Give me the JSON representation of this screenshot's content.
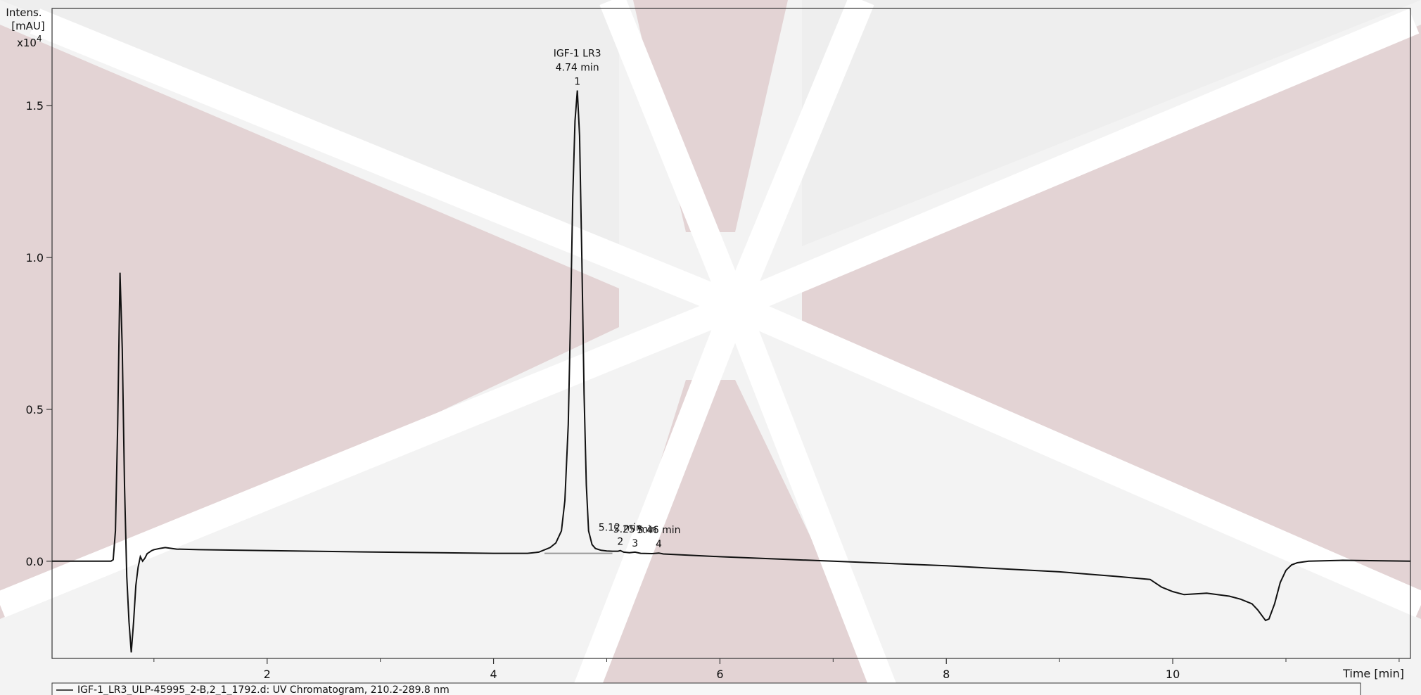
{
  "chart_data": {
    "type": "line",
    "title": "",
    "ylabel": [
      "Intens.",
      "[mAU]",
      "x10",
      "4"
    ],
    "xlabel": "Time [min]",
    "xlim": [
      0.1,
      12.1
    ],
    "ylim": [
      -0.32,
      1.82
    ],
    "xticks": [
      2,
      4,
      6,
      8,
      10
    ],
    "xtick_labels": [
      "2",
      "4",
      "6",
      "8",
      "10"
    ],
    "xminor": [
      1,
      3,
      5,
      7,
      9,
      11,
      12
    ],
    "yticks": [
      0.0,
      0.5,
      1.0,
      1.5
    ],
    "ytick_labels": [
      "0.0",
      "0.5",
      "1.0",
      "1.5"
    ],
    "grid": false,
    "legend": {
      "position": "bottom-left",
      "text": "IGF-1_LR3_ULP-45995_2-B,2_1_1792.d: UV Chromatogram, 210.2-289.8 nm"
    },
    "peaks": [
      {
        "number": "1",
        "time": 4.74,
        "name": "IGF-1 LR3",
        "time_label": "4.74 min",
        "height": 1.55
      },
      {
        "number": "2",
        "time": 5.12,
        "name": "",
        "time_label": "5.12 min",
        "height": 0.035
      },
      {
        "number": "3",
        "time": 5.25,
        "name": "",
        "time_label": "5.25 min",
        "height": 0.03
      },
      {
        "number": "4",
        "time": 5.46,
        "name": "",
        "time_label": "5.46 min",
        "height": 0.027
      }
    ],
    "series": [
      {
        "x": [
          0.1,
          0.62,
          0.64,
          0.66,
          0.68,
          0.7,
          0.72,
          0.74,
          0.76,
          0.78,
          0.8,
          0.82,
          0.84,
          0.86,
          0.88,
          0.9,
          0.92,
          0.94,
          0.96,
          0.98,
          1.0,
          1.05,
          1.1,
          1.2,
          1.4,
          2.0,
          3.0,
          4.0,
          4.3,
          4.4,
          4.5,
          4.55,
          4.6,
          4.63,
          4.66,
          4.68,
          4.7,
          4.72,
          4.74,
          4.76,
          4.78,
          4.8,
          4.82,
          4.84,
          4.87,
          4.9,
          4.95,
          5.0,
          5.05,
          5.1,
          5.12,
          5.15,
          5.2,
          5.25,
          5.3,
          5.4,
          5.46,
          5.5,
          6.0,
          7.0,
          8.0,
          9.0,
          9.5,
          9.8,
          9.9,
          10.0,
          10.1,
          10.3,
          10.5,
          10.6,
          10.7,
          10.75,
          10.8,
          10.82,
          10.85,
          10.9,
          10.95,
          11.0,
          11.05,
          11.1,
          11.2,
          11.5,
          12.1
        ],
        "y": [
          0.0,
          0.0,
          0.005,
          0.1,
          0.45,
          0.95,
          0.7,
          0.25,
          -0.05,
          -0.2,
          -0.3,
          -0.2,
          -0.08,
          -0.02,
          0.015,
          0.0,
          0.01,
          0.025,
          0.03,
          0.035,
          0.038,
          0.042,
          0.045,
          0.04,
          0.038,
          0.035,
          0.03,
          0.026,
          0.026,
          0.03,
          0.045,
          0.06,
          0.1,
          0.2,
          0.45,
          0.8,
          1.2,
          1.45,
          1.55,
          1.4,
          1.0,
          0.55,
          0.25,
          0.1,
          0.055,
          0.042,
          0.036,
          0.034,
          0.033,
          0.033,
          0.035,
          0.03,
          0.028,
          0.03,
          0.026,
          0.025,
          0.027,
          0.024,
          0.015,
          0.0,
          -0.015,
          -0.035,
          -0.05,
          -0.06,
          -0.085,
          -0.1,
          -0.11,
          -0.105,
          -0.115,
          -0.125,
          -0.14,
          -0.16,
          -0.185,
          -0.195,
          -0.19,
          -0.14,
          -0.07,
          -0.03,
          -0.012,
          -0.005,
          0.0,
          0.003,
          0.0
        ]
      }
    ]
  }
}
